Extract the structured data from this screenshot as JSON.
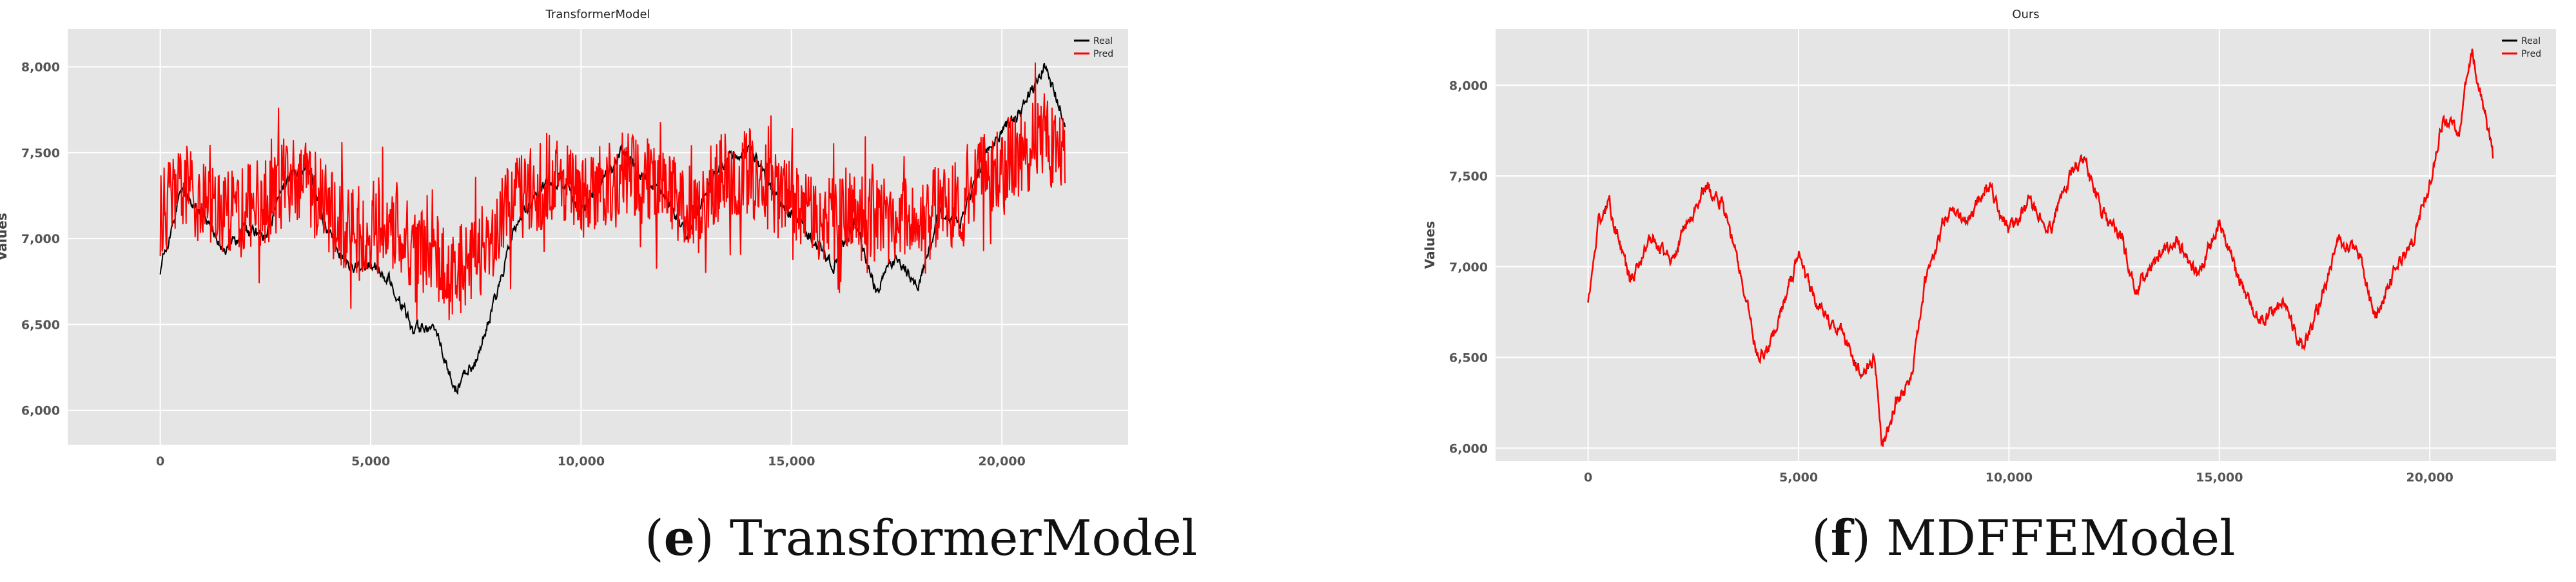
{
  "chart_data": [
    {
      "type": "line",
      "title": "TransformerModel",
      "xlabel": "",
      "ylabel": "Values",
      "xlim": [
        -2200,
        23000
      ],
      "ylim": [
        5800,
        8220
      ],
      "xticks": [
        0,
        5000,
        10000,
        15000,
        20000
      ],
      "xtick_labels": [
        "0",
        "5,000",
        "10,000",
        "15,000",
        "20,000"
      ],
      "yticks": [
        6000,
        6500,
        7000,
        7500,
        8000
      ],
      "ytick_labels": [
        "6,000",
        "6,500",
        "7,000",
        "7,500",
        "8,000"
      ],
      "grid": true,
      "legend_position": "top-right",
      "series": [
        {
          "name": "Real",
          "color": "#000000",
          "x": [
            0,
            500,
            1000,
            1500,
            2000,
            2500,
            3000,
            3500,
            4000,
            4500,
            5000,
            5500,
            6000,
            6500,
            7000,
            7500,
            8000,
            8500,
            9000,
            9500,
            10000,
            10500,
            11000,
            11500,
            12000,
            12500,
            13000,
            13500,
            14000,
            14500,
            15000,
            15500,
            16000,
            16500,
            17000,
            17500,
            18000,
            18500,
            19000,
            19500,
            20000,
            20500,
            21000,
            21500
          ],
          "values": [
            6820,
            7280,
            7150,
            6930,
            7050,
            7000,
            7330,
            7430,
            7030,
            6830,
            6850,
            6760,
            6460,
            6500,
            6120,
            6280,
            6680,
            7120,
            7280,
            7350,
            7150,
            7330,
            7520,
            7350,
            7250,
            7000,
            7300,
            7480,
            7530,
            7300,
            7150,
            7000,
            6850,
            7100,
            6700,
            6900,
            6720,
            7150,
            7080,
            7420,
            7620,
            7750,
            8000,
            7700
          ]
        },
        {
          "name": "Pred",
          "color": "#ff0000",
          "x": [
            0,
            500,
            1000,
            1500,
            2000,
            2500,
            3000,
            3500,
            4000,
            4500,
            5000,
            5500,
            6000,
            6500,
            7000,
            7500,
            8000,
            8500,
            9000,
            9500,
            10000,
            10500,
            11000,
            11500,
            12000,
            12500,
            13000,
            13500,
            14000,
            14500,
            15000,
            15500,
            16000,
            16500,
            17000,
            17500,
            18000,
            18500,
            19000,
            19500,
            20000,
            20500,
            21000,
            21500
          ],
          "values": [
            7150,
            7300,
            7250,
            7150,
            7200,
            7200,
            7350,
            7320,
            7150,
            7050,
            7060,
            7050,
            6950,
            6900,
            6800,
            6880,
            7050,
            7250,
            7300,
            7330,
            7220,
            7300,
            7400,
            7330,
            7300,
            7180,
            7300,
            7380,
            7400,
            7280,
            7230,
            7160,
            7100,
            7200,
            7080,
            7120,
            7050,
            7200,
            7180,
            7350,
            7450,
            7500,
            7600,
            7450
          ]
        }
      ]
    },
    {
      "type": "line",
      "title": "Ours",
      "xlabel": "",
      "ylabel": "Values",
      "xlim": [
        -2200,
        23000
      ],
      "ylim": [
        5930,
        8310
      ],
      "xticks": [
        0,
        5000,
        10000,
        15000,
        20000
      ],
      "xtick_labels": [
        "0",
        "5,000",
        "10,000",
        "15,000",
        "20,000"
      ],
      "yticks": [
        6000,
        6500,
        7000,
        7500,
        8000
      ],
      "ytick_labels": [
        "6,000",
        "6,500",
        "7,000",
        "7,500",
        "8,000"
      ],
      "grid": true,
      "legend_position": "top-right",
      "series": [
        {
          "name": "Real",
          "color": "#000000",
          "x": [
            0,
            250,
            500,
            1000,
            1500,
            2000,
            2500,
            2800,
            3200,
            3700,
            4000,
            4300,
            4700,
            5000,
            5500,
            6000,
            6500,
            6800,
            7000,
            7300,
            7700,
            8000,
            8500,
            9000,
            9500,
            10000,
            10500,
            11000,
            11500,
            11800,
            12200,
            12700,
            13000,
            13500,
            14000,
            14500,
            15000,
            15500,
            16000,
            16500,
            17000,
            17400,
            17800,
            18300,
            18700,
            19200,
            19600,
            20000,
            20300,
            20700,
            21000,
            21300,
            21500
          ],
          "values": [
            6800,
            7250,
            7350,
            6920,
            7150,
            7050,
            7300,
            7450,
            7350,
            6900,
            6500,
            6550,
            6850,
            7050,
            6750,
            6650,
            6400,
            6500,
            6000,
            6250,
            6400,
            6900,
            7300,
            7250,
            7450,
            7200,
            7350,
            7200,
            7550,
            7600,
            7300,
            7150,
            6850,
            7050,
            7150,
            6950,
            7250,
            6900,
            6700,
            6800,
            6550,
            6800,
            7150,
            7100,
            6700,
            7000,
            7150,
            7450,
            7800,
            7750,
            8200,
            7850,
            7600
          ]
        },
        {
          "name": "Pred",
          "color": "#ff0000",
          "x": [
            0,
            250,
            500,
            1000,
            1500,
            2000,
            2500,
            2800,
            3200,
            3700,
            4000,
            4300,
            4700,
            5000,
            5500,
            6000,
            6500,
            6800,
            7000,
            7300,
            7700,
            8000,
            8500,
            9000,
            9500,
            10000,
            10500,
            11000,
            11500,
            11800,
            12200,
            12700,
            13000,
            13500,
            14000,
            14500,
            15000,
            15500,
            16000,
            16500,
            17000,
            17400,
            17800,
            18300,
            18700,
            19200,
            19600,
            20000,
            20300,
            20700,
            21000,
            21300,
            21500
          ],
          "values": [
            6800,
            7250,
            7350,
            6920,
            7150,
            7050,
            7300,
            7450,
            7350,
            6900,
            6500,
            6550,
            6850,
            7050,
            6750,
            6650,
            6400,
            6500,
            6000,
            6250,
            6400,
            6900,
            7300,
            7250,
            7450,
            7200,
            7350,
            7200,
            7550,
            7600,
            7300,
            7150,
            6850,
            7050,
            7150,
            6950,
            7250,
            6900,
            6700,
            6800,
            6550,
            6800,
            7150,
            7100,
            6700,
            7000,
            7150,
            7450,
            7800,
            7750,
            8200,
            7850,
            7600
          ]
        }
      ]
    }
  ],
  "captions": [
    {
      "letter": "e",
      "text": "TransformerModel"
    },
    {
      "letter": "f",
      "text": "MDFFEModel"
    }
  ]
}
